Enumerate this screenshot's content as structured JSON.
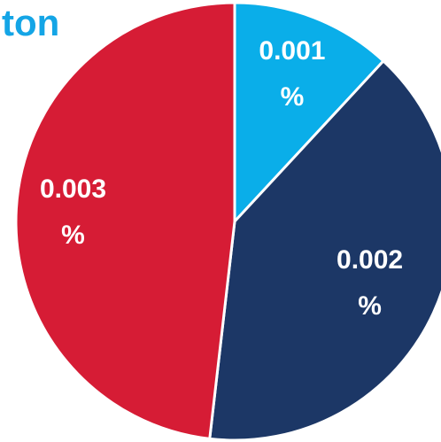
{
  "chart_data": {
    "type": "pie",
    "title": "ton",
    "categories": [
      null,
      null,
      null
    ],
    "values": [
      0.00062,
      0.00208,
      0.00251
    ],
    "value_labels": [
      "0.001 %",
      "0.002 %",
      "0.003 %"
    ],
    "colors": [
      "#0aaee9",
      "#1c3766",
      "#d61c35"
    ]
  }
}
